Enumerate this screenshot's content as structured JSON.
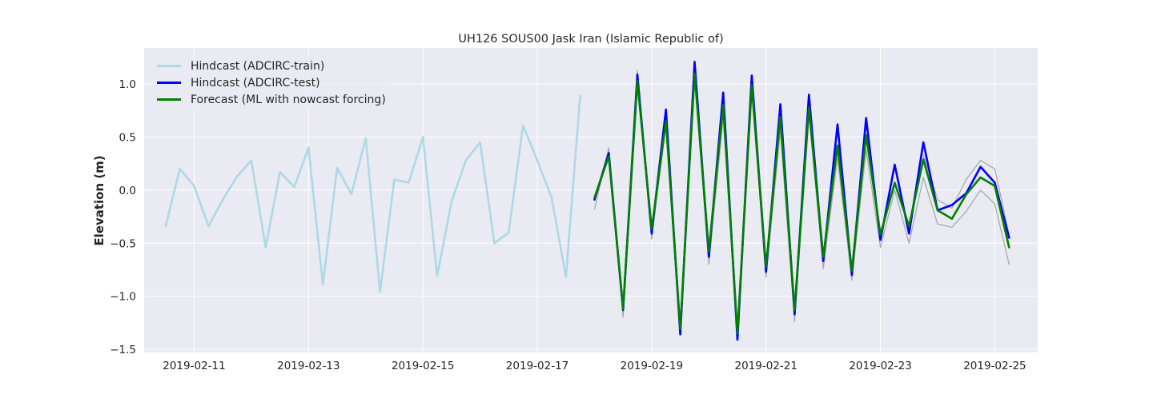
{
  "chart_data": {
    "type": "line",
    "title": "UH126 SOUS00 Jask Iran (Islamic Republic of)",
    "xlabel": "",
    "ylabel": "Elevation (m)",
    "xlim": [
      "2019-02-10 03:00",
      "2019-02-25 18:00"
    ],
    "ylim": [
      -1.53,
      1.34
    ],
    "x_ticks": [
      "2019-02-11",
      "2019-02-13",
      "2019-02-15",
      "2019-02-17",
      "2019-02-19",
      "2019-02-21",
      "2019-02-23",
      "2019-02-25"
    ],
    "y_ticks": [
      -1.5,
      -1.0,
      -0.5,
      0.0,
      0.5,
      1.0
    ],
    "y_tick_labels": [
      "−1.5",
      "−1.0",
      "−0.5",
      "0.0",
      "0.5",
      "1.0"
    ],
    "grid": true,
    "legend_position": "top-left",
    "series": [
      {
        "name": "Hindcast (ADCIRC-train)",
        "color": "#add8e6",
        "x": [
          "2019-02-10 12:00",
          "2019-02-10 18:00",
          "2019-02-11 00:00",
          "2019-02-11 06:00",
          "2019-02-11 12:00",
          "2019-02-11 18:00",
          "2019-02-12 00:00",
          "2019-02-12 06:00",
          "2019-02-12 12:00",
          "2019-02-12 18:00",
          "2019-02-13 00:00",
          "2019-02-13 06:00",
          "2019-02-13 12:00",
          "2019-02-13 18:00",
          "2019-02-14 00:00",
          "2019-02-14 06:00",
          "2019-02-14 12:00",
          "2019-02-14 18:00",
          "2019-02-15 00:00",
          "2019-02-15 06:00",
          "2019-02-15 12:00",
          "2019-02-15 18:00",
          "2019-02-16 00:00",
          "2019-02-16 06:00",
          "2019-02-16 12:00",
          "2019-02-16 18:00",
          "2019-02-17 00:00",
          "2019-02-17 06:00",
          "2019-02-17 12:00",
          "2019-02-17 18:00"
        ],
        "y": [
          -0.34,
          0.2,
          0.04,
          -0.34,
          -0.09,
          0.13,
          0.28,
          -0.54,
          0.17,
          0.03,
          0.4,
          -0.89,
          0.21,
          -0.04,
          0.49,
          -0.96,
          0.1,
          0.07,
          0.5,
          -0.81,
          -0.11,
          0.28,
          0.45,
          -0.5,
          -0.4,
          0.61,
          0.28,
          -0.07,
          -0.82,
          0.89
        ]
      },
      {
        "name": "",
        "color": "#aaaaaa",
        "x": [
          "2019-02-18 00:00",
          "2019-02-18 06:00",
          "2019-02-18 12:00",
          "2019-02-18 18:00",
          "2019-02-19 00:00",
          "2019-02-19 06:00",
          "2019-02-19 12:00",
          "2019-02-19 18:00",
          "2019-02-20 00:00",
          "2019-02-20 06:00",
          "2019-02-20 12:00",
          "2019-02-20 18:00",
          "2019-02-21 00:00",
          "2019-02-21 06:00",
          "2019-02-21 12:00",
          "2019-02-21 18:00",
          "2019-02-22 00:00",
          "2019-02-22 06:00",
          "2019-02-22 12:00",
          "2019-02-22 18:00",
          "2019-02-23 00:00",
          "2019-02-23 06:00",
          "2019-02-23 12:00",
          "2019-02-23 18:00",
          "2019-02-24 00:00",
          "2019-02-24 06:00",
          "2019-02-24 12:00",
          "2019-02-24 18:00",
          "2019-02-25 00:00",
          "2019-02-25 06:00"
        ],
        "y": [
          -0.18,
          0.4,
          -1.2,
          1.13,
          -0.46,
          0.62,
          -1.3,
          1.07,
          -0.7,
          0.68,
          -1.3,
          0.93,
          -0.82,
          0.55,
          -1.24,
          0.7,
          -0.74,
          0.3,
          -0.85,
          0.38,
          -0.54,
          0.0,
          -0.5,
          0.12,
          -0.32,
          -0.35,
          -0.2,
          0.0,
          -0.13,
          -0.7
        ]
      },
      {
        "name": "",
        "color": "#aaaaaa",
        "x": [
          "2019-02-23 18:00",
          "2019-02-24 00:00",
          "2019-02-24 06:00",
          "2019-02-24 12:00",
          "2019-02-24 18:00",
          "2019-02-25 00:00",
          "2019-02-25 06:00"
        ],
        "y": [
          0.33,
          -0.09,
          -0.17,
          0.1,
          0.28,
          0.2,
          -0.42
        ]
      },
      {
        "name": "Hindcast (ADCIRC-test)",
        "color": "#0000ff",
        "x": [
          "2019-02-18 00:00",
          "2019-02-18 06:00",
          "2019-02-18 12:00",
          "2019-02-18 18:00",
          "2019-02-19 00:00",
          "2019-02-19 06:00",
          "2019-02-19 12:00",
          "2019-02-19 18:00",
          "2019-02-20 00:00",
          "2019-02-20 06:00",
          "2019-02-20 12:00",
          "2019-02-20 18:00",
          "2019-02-21 00:00",
          "2019-02-21 06:00",
          "2019-02-21 12:00",
          "2019-02-21 18:00",
          "2019-02-22 00:00",
          "2019-02-22 06:00",
          "2019-02-22 12:00",
          "2019-02-22 18:00",
          "2019-02-23 00:00",
          "2019-02-23 06:00",
          "2019-02-23 12:00",
          "2019-02-23 18:00",
          "2019-02-24 00:00",
          "2019-02-24 06:00",
          "2019-02-24 12:00",
          "2019-02-24 18:00",
          "2019-02-25 00:00",
          "2019-02-25 06:00"
        ],
        "y": [
          -0.09,
          0.35,
          -1.13,
          1.09,
          -0.41,
          0.76,
          -1.36,
          1.21,
          -0.63,
          0.92,
          -1.41,
          1.08,
          -0.77,
          0.81,
          -1.17,
          0.9,
          -0.67,
          0.62,
          -0.8,
          0.68,
          -0.47,
          0.24,
          -0.41,
          0.45,
          -0.19,
          -0.14,
          -0.03,
          0.22,
          0.07,
          -0.45
        ]
      },
      {
        "name": "Forecast (ML with nowcast forcing)",
        "color": "#008000",
        "x": [
          "2019-02-18 00:00",
          "2019-02-18 06:00",
          "2019-02-18 12:00",
          "2019-02-18 18:00",
          "2019-02-19 00:00",
          "2019-02-19 06:00",
          "2019-02-19 12:00",
          "2019-02-19 18:00",
          "2019-02-20 00:00",
          "2019-02-20 06:00",
          "2019-02-20 12:00",
          "2019-02-20 18:00",
          "2019-02-21 00:00",
          "2019-02-21 06:00",
          "2019-02-21 12:00",
          "2019-02-21 18:00",
          "2019-02-22 00:00",
          "2019-02-22 06:00",
          "2019-02-22 12:00",
          "2019-02-22 18:00",
          "2019-02-23 00:00",
          "2019-02-23 06:00",
          "2019-02-23 12:00",
          "2019-02-23 18:00",
          "2019-02-24 00:00",
          "2019-02-24 06:00",
          "2019-02-24 12:00",
          "2019-02-24 18:00",
          "2019-02-25 00:00",
          "2019-02-25 06:00"
        ],
        "y": [
          -0.07,
          0.32,
          -1.12,
          1.03,
          -0.37,
          0.65,
          -1.31,
          1.1,
          -0.58,
          0.8,
          -1.35,
          0.99,
          -0.72,
          0.69,
          -1.13,
          0.78,
          -0.63,
          0.42,
          -0.76,
          0.52,
          -0.42,
          0.07,
          -0.34,
          0.29,
          -0.19,
          -0.27,
          -0.04,
          0.12,
          0.04,
          -0.54
        ]
      }
    ]
  }
}
